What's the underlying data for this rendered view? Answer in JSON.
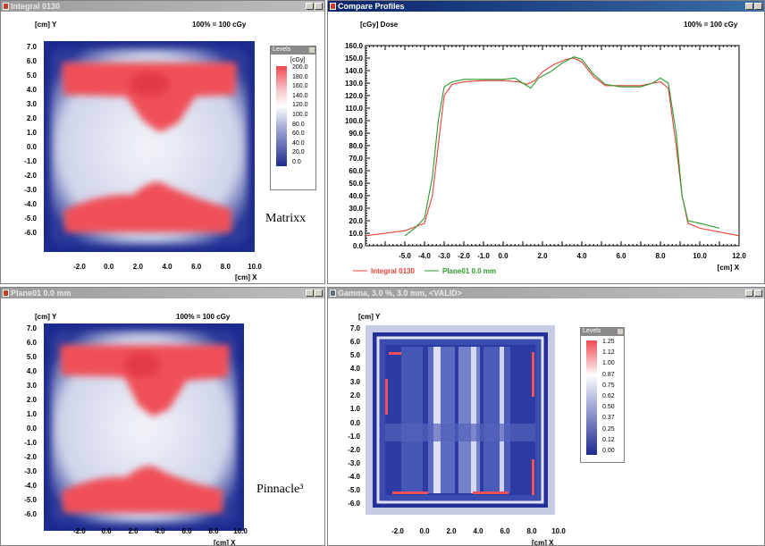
{
  "windows": {
    "integral": {
      "title": "Integral 0130",
      "scale_label": "100% = 100 cGy"
    },
    "profiles": {
      "title": "Compare Profiles",
      "ylabel": "[cGy] Dose",
      "scale_label": "100% = 100 cGy",
      "xlabel": "[cm] X"
    },
    "plane": {
      "title": "Plane01 0.0 mm",
      "scale_label": "100% = 100 cGy"
    },
    "gamma": {
      "title": "Gamma, 3.0 %, 3.0 mm, <VALID>"
    }
  },
  "axis": {
    "ylabel": "[cm] Y",
    "xlabel": "[cm] X"
  },
  "map_yticks": [
    "7.0",
    "6.0",
    "5.0",
    "4.0",
    "3.0",
    "2.0",
    "1.0",
    "0.0",
    "-1.0",
    "-2.0",
    "-3.0",
    "-4.0",
    "-5.0",
    "-6.0"
  ],
  "map_xticks": [
    "-2.0",
    "0.0",
    "2.0",
    "4.0",
    "6.0",
    "8.0",
    "10.0"
  ],
  "dose_legend": {
    "title": "Levels",
    "unit": "[cGy]",
    "values": [
      "200.0",
      "180.0",
      "160.0",
      "140.0",
      "120.0",
      "100.0",
      "80.0",
      "60.0",
      "40.0",
      "20.0",
      "0.0"
    ]
  },
  "gamma_legend": {
    "title": "Levels",
    "values": [
      "1.25",
      "1.12",
      "1.00",
      "0.87",
      "0.75",
      "0.62",
      "0.50",
      "0.37",
      "0.25",
      "0.12",
      "0.00"
    ]
  },
  "captions": {
    "matrixx": "Matrixx",
    "pinnacle": "Pinnacle³"
  },
  "colors": {
    "high": "#f04a52",
    "mid": "#ffffff",
    "low": "#1d2a8f",
    "integral_line": "#e8403a",
    "plane_line": "#2a9a2a"
  },
  "chart_data": {
    "type": "line",
    "title": "",
    "xlabel": "[cm] X",
    "ylabel": "[cGy] Dose",
    "xlim": [
      -7.0,
      12.0
    ],
    "ylim": [
      0,
      160
    ],
    "yticks": [
      "160.0",
      "150.0",
      "140.0",
      "130.0",
      "120.0",
      "110.0",
      "100.0",
      "90.0",
      "80.0",
      "70.0",
      "60.0",
      "50.0",
      "40.0",
      "30.0",
      "20.0",
      "10.0",
      "0.0"
    ],
    "xticks": [
      "-5.0",
      "-4.0",
      "-3.0",
      "-2.0",
      "-1.0",
      "0.0",
      "2.0",
      "4.0",
      "6.0",
      "8.0",
      "10.0",
      "12.0"
    ],
    "xtick_values": [
      -5,
      -4,
      -3,
      -2,
      -1,
      0,
      2,
      4,
      6,
      8,
      10,
      12
    ],
    "series": [
      {
        "name": "Integral 0130",
        "color": "#e8403a",
        "x": [
          -7.0,
          -5.0,
          -4.5,
          -4.0,
          -3.6,
          -3.3,
          -3.0,
          -2.6,
          -2.0,
          -1.0,
          0.0,
          0.8,
          1.2,
          1.6,
          2.0,
          2.6,
          3.2,
          3.6,
          4.0,
          4.6,
          5.2,
          6.0,
          7.0,
          7.6,
          8.0,
          8.4,
          8.8,
          9.1,
          9.4,
          10.0,
          11.0,
          12.0
        ],
        "y": [
          8,
          12,
          15,
          18,
          40,
          80,
          120,
          129,
          131,
          132,
          132,
          131,
          129,
          132,
          139,
          145,
          149,
          150,
          147,
          135,
          128,
          128,
          128,
          130,
          131,
          126,
          80,
          40,
          18,
          14,
          11,
          8
        ]
      },
      {
        "name": "Plane01 0.0 mm",
        "color": "#2a9a2a",
        "x": [
          -5.0,
          -4.5,
          -4.0,
          -3.6,
          -3.3,
          -3.0,
          -2.6,
          -2.0,
          -1.0,
          0.0,
          0.6,
          1.0,
          1.4,
          1.8,
          2.4,
          3.0,
          3.6,
          4.0,
          4.6,
          5.2,
          6.0,
          7.0,
          7.6,
          8.0,
          8.4,
          8.8,
          9.1,
          9.4,
          10.0,
          11.0
        ],
        "y": [
          8,
          14,
          22,
          55,
          100,
          127,
          131,
          133,
          133,
          133,
          134,
          130,
          126,
          134,
          139,
          146,
          151,
          149,
          137,
          129,
          127,
          127,
          130,
          134,
          130,
          90,
          40,
          20,
          18,
          14
        ]
      }
    ]
  }
}
